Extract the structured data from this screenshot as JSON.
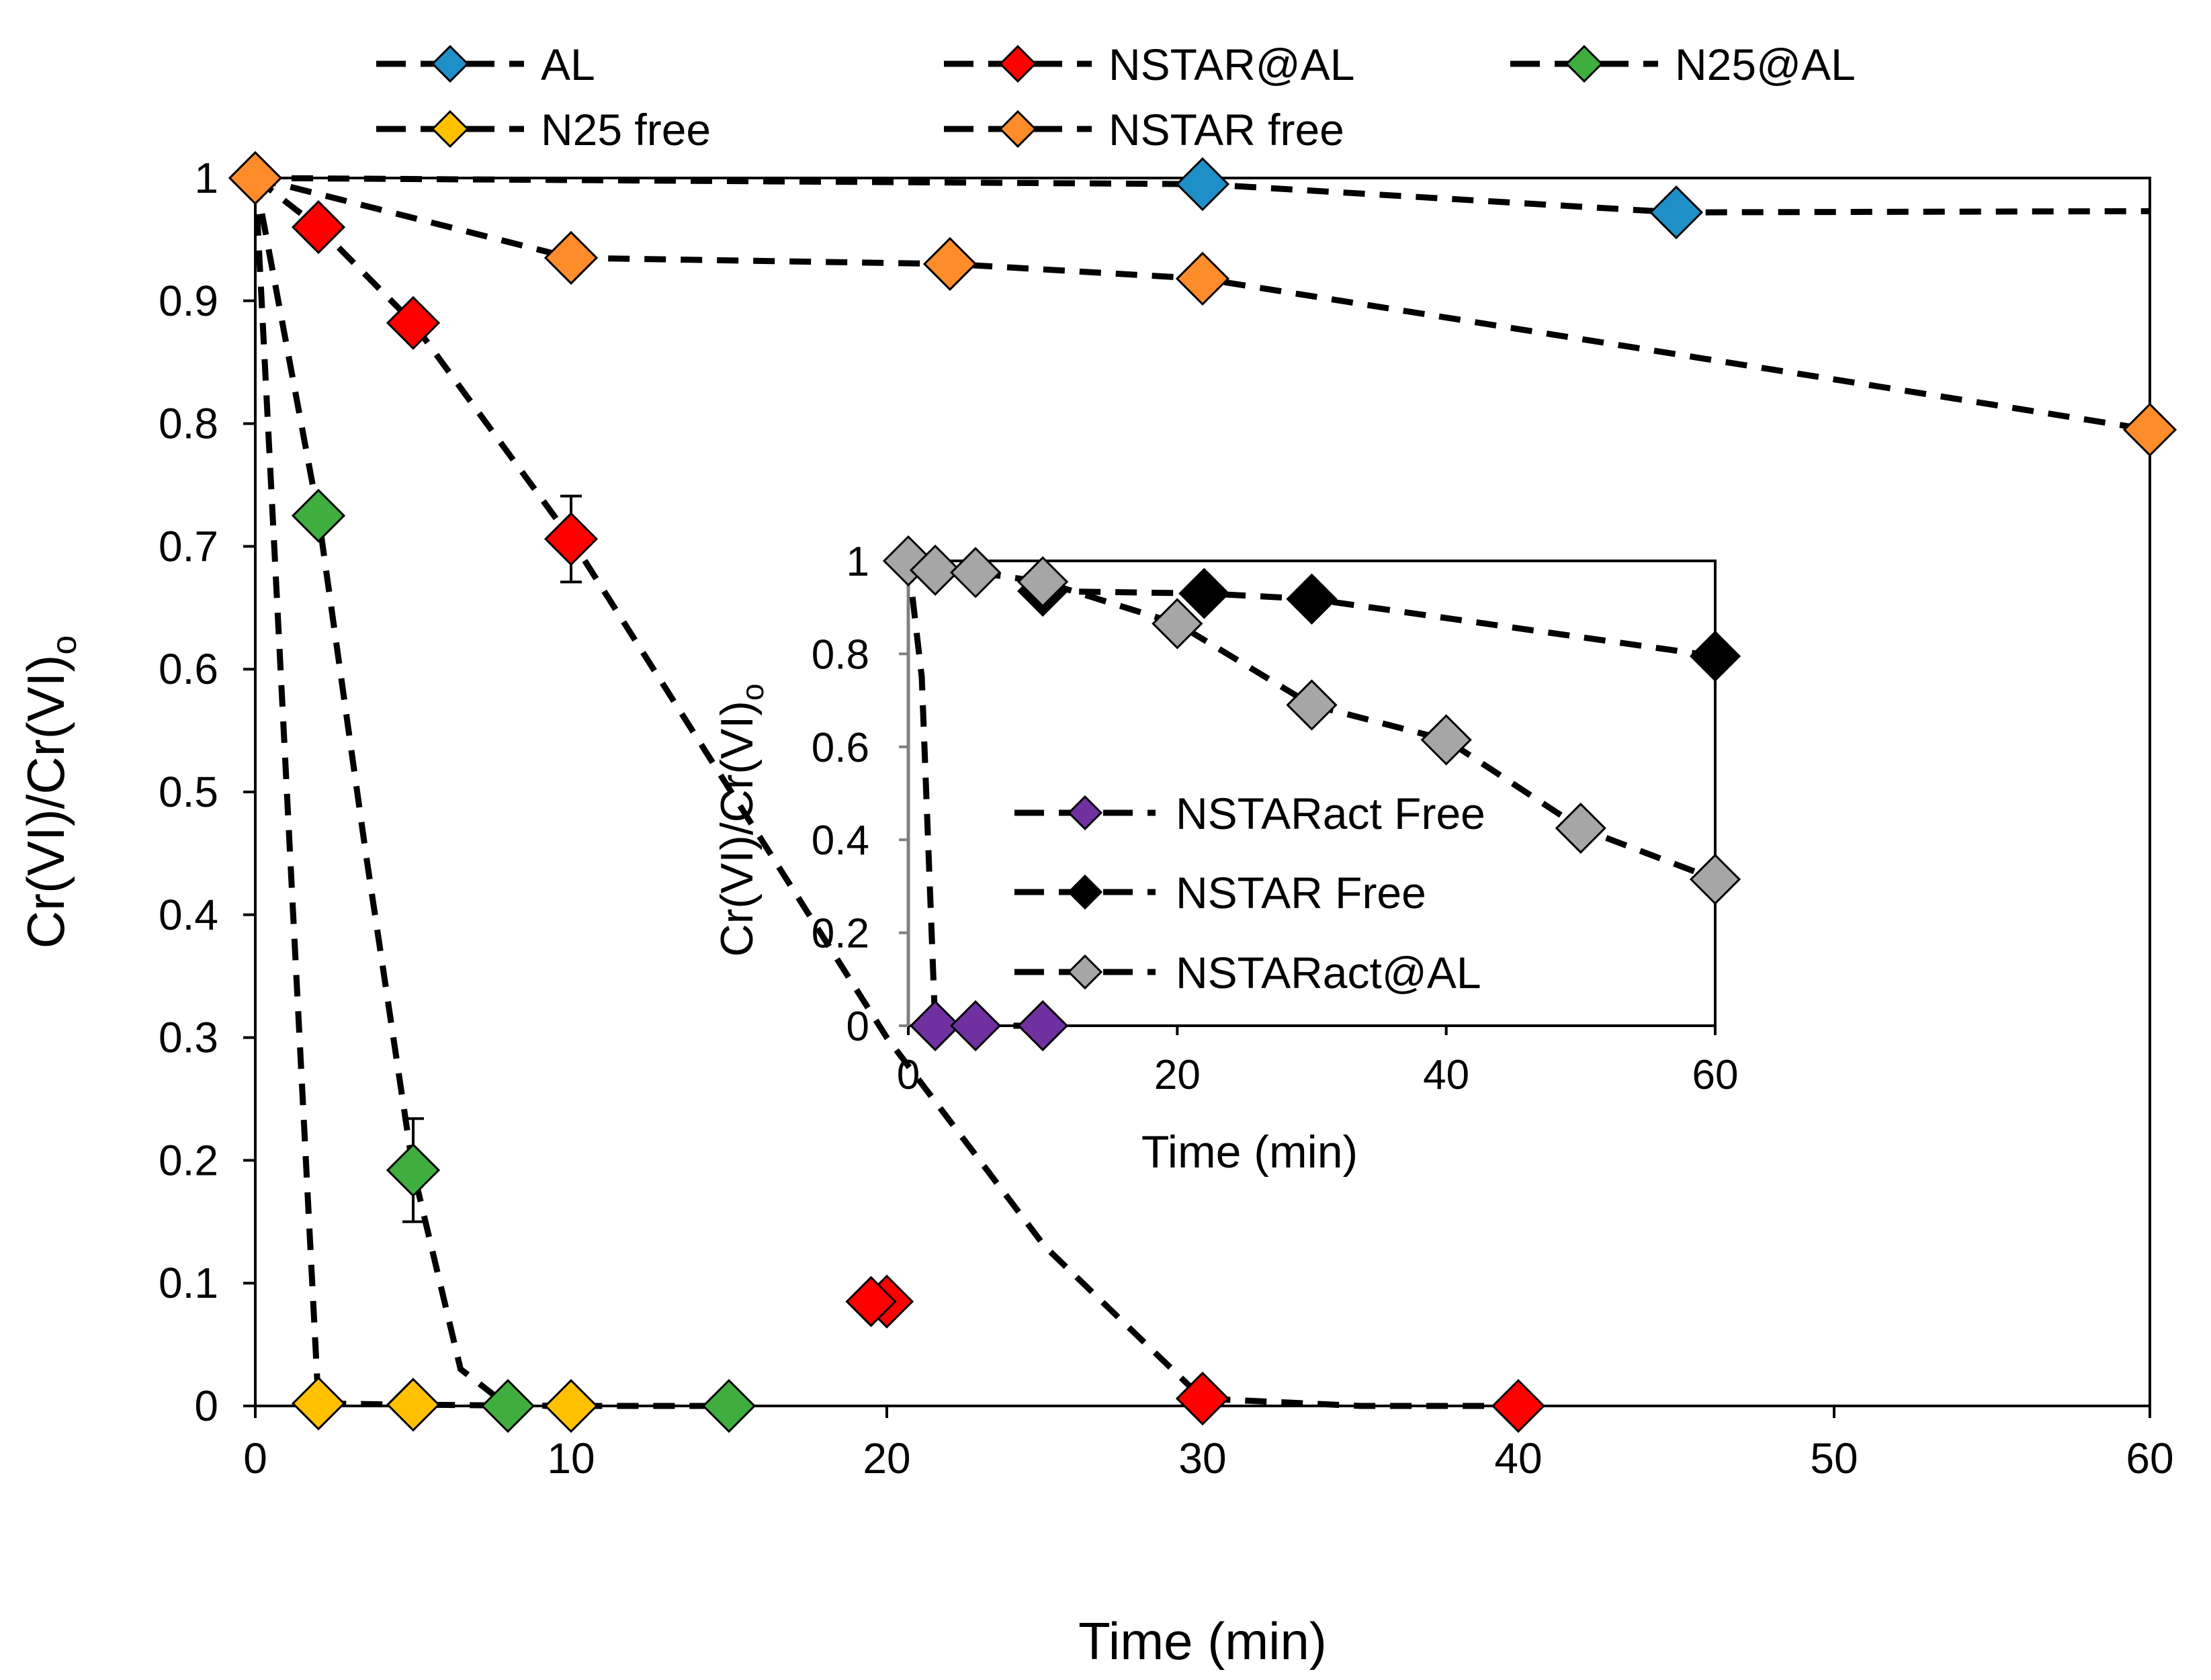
{
  "chart_data": [
    {
      "type": "scatter",
      "panel": "main",
      "title": "",
      "xlabel": "Time (min)",
      "ylabel": "Cr(VI)/Cr(VI)o",
      "ylabel_base": "Cr(VI)/Cr(VI)",
      "ylabel_sub": "o",
      "xlim": [
        0,
        60
      ],
      "ylim": [
        0,
        1
      ],
      "x_ticks": [
        "0",
        "10",
        "20",
        "30",
        "40",
        "50",
        "60"
      ],
      "y_ticks": [
        "0",
        "0.1",
        "0.2",
        "0.3",
        "0.4",
        "0.5",
        "0.6",
        "0.7",
        "0.8",
        "0.9",
        "1"
      ],
      "grid": false,
      "legend_position": "top",
      "series": [
        {
          "name": "AL",
          "color": "#1f8fc7",
          "x": [
            0,
            30,
            45
          ],
          "y": [
            1.0,
            0.995,
            0.972
          ],
          "trend": [
            [
              0,
              1.0
            ],
            [
              30,
              0.995
            ],
            [
              45,
              0.972
            ],
            [
              60,
              0.973
            ]
          ]
        },
        {
          "name": "NSTAR@AL",
          "color": "#ff0000",
          "x": [
            2,
            5,
            10,
            20,
            30,
            40
          ],
          "y": [
            0.96,
            0.882,
            0.706,
            0.085,
            0.006,
            0.0
          ],
          "error": [
            0,
            0,
            0.035,
            0,
            0,
            0
          ],
          "trend": [
            [
              0,
              1.0
            ],
            [
              2,
              0.96
            ],
            [
              5,
              0.882
            ],
            [
              10,
              0.706
            ],
            [
              20,
              0.3
            ],
            [
              25,
              0.13
            ],
            [
              30,
              0.006
            ],
            [
              35,
              0.0
            ],
            [
              40,
              0.0
            ]
          ]
        },
        {
          "name": "N25@AL",
          "color": "#3fae3f",
          "x": [
            2,
            5,
            8,
            15
          ],
          "y": [
            0.725,
            0.192,
            0.0,
            0.0
          ],
          "error": [
            0,
            0.042,
            0,
            0
          ],
          "trend": [
            [
              0,
              1.0
            ],
            [
              2,
              0.725
            ],
            [
              3.5,
              0.45
            ],
            [
              5,
              0.192
            ],
            [
              6.5,
              0.03
            ],
            [
              8,
              0.0
            ],
            [
              15,
              0.0
            ]
          ]
        },
        {
          "name": "N25 free",
          "color": "#ffc000",
          "x": [
            2,
            5,
            10
          ],
          "y": [
            0.002,
            0.001,
            0.0
          ],
          "trend": [
            [
              0,
              1.0
            ],
            [
              1.2,
              0.4
            ],
            [
              2,
              0.002
            ],
            [
              5,
              0.001
            ],
            [
              10,
              0.0
            ]
          ]
        },
        {
          "name": "NSTAR free",
          "color": "#ff8c2a",
          "x": [
            0,
            10,
            22,
            30,
            60
          ],
          "y": [
            1.0,
            0.935,
            0.93,
            0.918,
            0.795
          ],
          "trend": [
            [
              0,
              1.0
            ],
            [
              10,
              0.935
            ],
            [
              22,
              0.93
            ],
            [
              30,
              0.918
            ],
            [
              60,
              0.795
            ]
          ]
        }
      ]
    },
    {
      "type": "scatter",
      "panel": "inset",
      "title": "",
      "xlabel": "Time (min)",
      "ylabel": "Cr(VI)/Cr(VI)o",
      "ylabel_base": "Cr(VI)/Cr(VI)",
      "ylabel_sub": "o",
      "xlim": [
        0,
        60
      ],
      "ylim": [
        0,
        1
      ],
      "x_ticks": [
        "0",
        "20",
        "40",
        "60"
      ],
      "y_ticks": [
        "0",
        "0.2",
        "0.4",
        "0.6",
        "0.8",
        "1"
      ],
      "grid": false,
      "legend_position": "center",
      "series": [
        {
          "name": "NSTARact Free",
          "color": "#7030a0",
          "x": [
            2,
            5,
            10
          ],
          "y": [
            0.0,
            0.0,
            0.0
          ],
          "trend": [
            [
              0,
              1.0
            ],
            [
              1,
              0.75
            ],
            [
              2,
              0.0
            ],
            [
              5,
              0.0
            ],
            [
              10,
              0.0
            ]
          ]
        },
        {
          "name": "NSTAR Free",
          "color": "#000000",
          "x": [
            10,
            22,
            30,
            60
          ],
          "y": [
            0.935,
            0.93,
            0.918,
            0.795
          ],
          "trend": [
            [
              10,
              0.935
            ],
            [
              22,
              0.93
            ],
            [
              30,
              0.918
            ],
            [
              60,
              0.795
            ]
          ]
        },
        {
          "name": "NSTARact@AL",
          "color": "#a6a6a6",
          "x": [
            0,
            2,
            5,
            10,
            20,
            30,
            40,
            50,
            60
          ],
          "y": [
            1.0,
            0.98,
            0.975,
            0.955,
            0.865,
            0.69,
            0.615,
            0.425,
            0.315
          ],
          "trend": [
            [
              0,
              1.0
            ],
            [
              2,
              0.98
            ],
            [
              5,
              0.975
            ],
            [
              10,
              0.955
            ],
            [
              20,
              0.865
            ],
            [
              30,
              0.69
            ],
            [
              40,
              0.615
            ],
            [
              50,
              0.425
            ],
            [
              60,
              0.315
            ]
          ]
        }
      ]
    }
  ],
  "extra_points": [
    {
      "panel": "main",
      "series": "NSTAR@AL",
      "note": "red marker visible near inset left edge",
      "x": 19.5,
      "y": 0.085
    }
  ]
}
